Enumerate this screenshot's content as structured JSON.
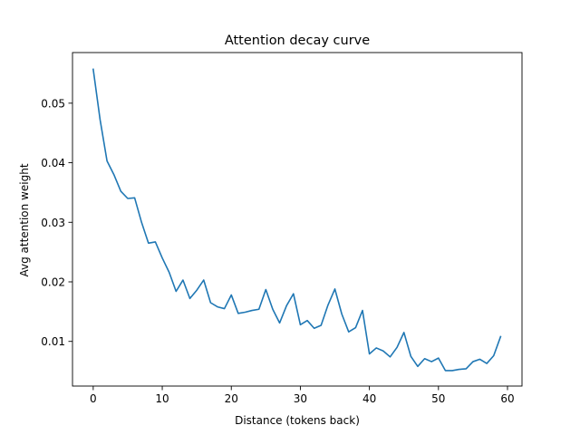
{
  "chart_data": {
    "type": "line",
    "title": "Attention decay curve",
    "xlabel": "Distance (tokens back)",
    "ylabel": "Avg attention weight",
    "xlim": [
      -3,
      62.1
    ],
    "ylim": [
      0.0025,
      0.0585
    ],
    "x_ticks": [
      0,
      10,
      20,
      30,
      40,
      50,
      60
    ],
    "x_tick_labels": [
      "0",
      "10",
      "20",
      "30",
      "40",
      "50",
      "60"
    ],
    "y_ticks": [
      0.01,
      0.02,
      0.03,
      0.04,
      0.05
    ],
    "y_tick_labels": [
      "0.01",
      "0.02",
      "0.03",
      "0.04",
      "0.05"
    ],
    "grid": false,
    "legend": "none",
    "series_color": "#1f77b4",
    "series": [
      {
        "x": [
          0,
          1,
          2,
          3,
          4,
          5,
          6,
          7,
          8,
          9,
          10,
          11,
          12,
          13,
          14,
          15,
          16,
          17,
          18,
          19,
          20,
          21,
          22,
          23,
          24,
          25,
          26,
          27,
          28,
          29,
          30,
          31,
          32,
          33,
          34,
          35,
          36,
          37,
          38,
          39,
          40,
          41,
          42,
          43,
          44,
          45,
          46,
          47,
          48,
          49,
          50,
          51,
          52,
          53,
          54,
          55,
          56,
          57,
          58,
          59
        ],
        "values": [
          0.0557,
          0.0472,
          0.0403,
          0.038,
          0.0352,
          0.034,
          0.0341,
          0.03,
          0.0265,
          0.0267,
          0.024,
          0.0216,
          0.0184,
          0.0203,
          0.0172,
          0.0186,
          0.0203,
          0.0165,
          0.0158,
          0.0155,
          0.0178,
          0.0147,
          0.0149,
          0.0152,
          0.0154,
          0.0187,
          0.0154,
          0.0131,
          0.016,
          0.018,
          0.0128,
          0.0135,
          0.0122,
          0.0127,
          0.0161,
          0.0188,
          0.0146,
          0.0116,
          0.0123,
          0.0152,
          0.0079,
          0.0089,
          0.0084,
          0.0074,
          0.009,
          0.0115,
          0.0075,
          0.0058,
          0.0071,
          0.0066,
          0.0072,
          0.0051,
          0.0051,
          0.0053,
          0.0054,
          0.0066,
          0.007,
          0.0063,
          0.0076,
          0.0108
        ]
      }
    ]
  }
}
